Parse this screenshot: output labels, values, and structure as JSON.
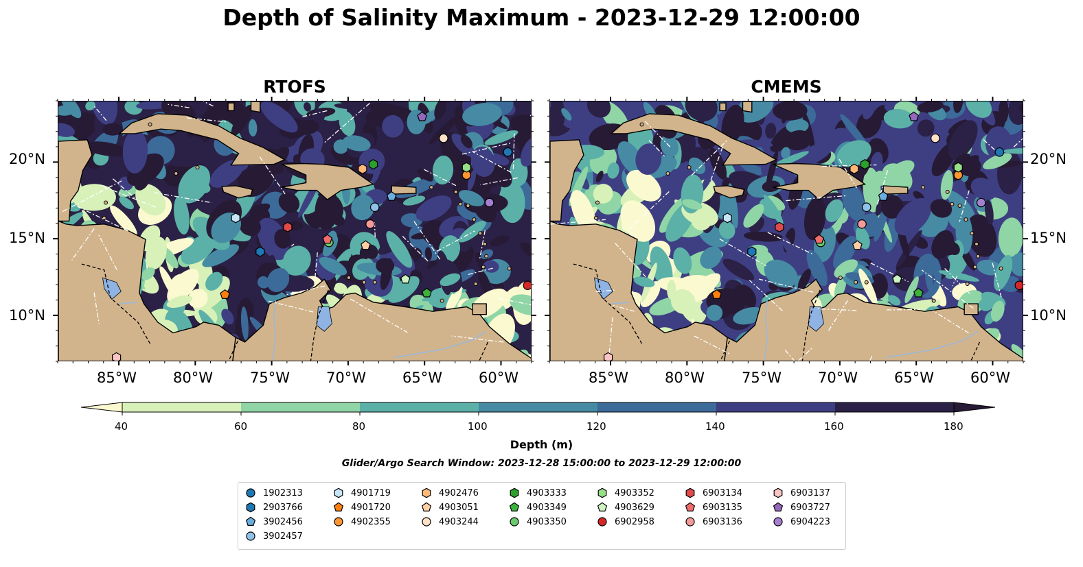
{
  "title": "Depth of Salinity Maximum - 2023-12-29 12:00:00",
  "panels": [
    {
      "id": "rtofs",
      "title": "RTOFS"
    },
    {
      "id": "cmems",
      "title": "CMEMS"
    }
  ],
  "axes": {
    "lon_ticks": [
      "85°W",
      "80°W",
      "75°W",
      "70°W",
      "65°W",
      "60°W"
    ],
    "lat_ticks": [
      "20°N",
      "15°N",
      "10°N"
    ]
  },
  "colorbar": {
    "label": "Depth (m)",
    "ticks": [
      "40",
      "60",
      "80",
      "100",
      "120",
      "140",
      "160",
      "180"
    ],
    "colors": [
      "#d7f1b8",
      "#8fd5a6",
      "#5bb0a7",
      "#468ba3",
      "#3c6a99",
      "#3e3f82",
      "#2b2045"
    ],
    "under_color": "#fbf9cf",
    "over_color": "#271a35",
    "extend": "both"
  },
  "search_window": "Glider/Argo Search Window: 2023-12-28 15:00:00 to 2023-12-29 12:00:00",
  "colors": {
    "land": "#d2b48c",
    "lake": "#8fb3e2",
    "river": "#9bb8d8"
  },
  "legend": [
    {
      "id": "1902313",
      "shape": "circle",
      "color": "#1f77b4"
    },
    {
      "id": "2903766",
      "shape": "hexagon",
      "color": "#1f77b4"
    },
    {
      "id": "3902456",
      "shape": "pentagon",
      "color": "#6aaee0"
    },
    {
      "id": "3902457",
      "shape": "circle",
      "color": "#8fc2ea"
    },
    {
      "id": "4901719",
      "shape": "hexagon",
      "color": "#c6e6f7"
    },
    {
      "id": "4901720",
      "shape": "pentagon",
      "color": "#ff7f0e"
    },
    {
      "id": "4902355",
      "shape": "circle",
      "color": "#ff9533"
    },
    {
      "id": "4902476",
      "shape": "hexagon",
      "color": "#ffb877"
    },
    {
      "id": "4903051",
      "shape": "pentagon",
      "color": "#ffcfa3"
    },
    {
      "id": "4903244",
      "shape": "circle",
      "color": "#ffe2c6"
    },
    {
      "id": "4903333",
      "shape": "hexagon",
      "color": "#2ca02c"
    },
    {
      "id": "4903349",
      "shape": "pentagon",
      "color": "#3cb23c"
    },
    {
      "id": "4903350",
      "shape": "circle",
      "color": "#6cca6c"
    },
    {
      "id": "4903352",
      "shape": "hexagon",
      "color": "#98df8a"
    },
    {
      "id": "4903629",
      "shape": "pentagon",
      "color": "#cdf2c3"
    },
    {
      "id": "6902958",
      "shape": "circle",
      "color": "#d62728"
    },
    {
      "id": "6903134",
      "shape": "hexagon",
      "color": "#e04a4b"
    },
    {
      "id": "6903135",
      "shape": "pentagon",
      "color": "#ef6d6d"
    },
    {
      "id": "6903136",
      "shape": "circle",
      "color": "#f59a9a"
    },
    {
      "id": "6903137",
      "shape": "hexagon",
      "color": "#fcc5c5"
    },
    {
      "id": "6903727",
      "shape": "pentagon",
      "color": "#9467bd"
    },
    {
      "id": "6904223",
      "shape": "circle",
      "color": "#a680d0"
    }
  ],
  "floats": {
    "1902313": [
      [
        -59.6,
        20.7
      ]
    ],
    "2903766": [
      [
        -75.8,
        14.2
      ]
    ],
    "3902456": [
      [
        -67.2,
        17.8
      ]
    ],
    "3902457": [
      [
        -68.3,
        17.1
      ]
    ],
    "4901719": [
      [
        -77.4,
        16.4
      ]
    ],
    "4901720": [
      [
        -78.1,
        11.4
      ]
    ],
    "4902355": [
      [
        -62.3,
        19.2
      ]
    ],
    "4902476": [
      [
        -69.1,
        19.6
      ]
    ],
    "4903051": [
      [
        -68.9,
        14.6
      ]
    ],
    "4903244": [
      [
        -63.8,
        21.6
      ]
    ],
    "4903333": [
      [
        -68.4,
        19.9
      ]
    ],
    "4903349": [
      [
        -64.9,
        11.5
      ]
    ],
    "4903350": [
      [
        -71.3,
        14.8
      ]
    ],
    "4903352": [
      [
        -62.3,
        19.7
      ]
    ],
    "4903629": [
      [
        -66.3,
        12.4
      ]
    ],
    "6902958": [
      [
        -58.3,
        12.0
      ]
    ],
    "6903134": [
      [
        -74.0,
        15.8
      ]
    ],
    "6903135": [
      [
        -71.4,
        15.0
      ]
    ],
    "6903136": [
      [
        -68.6,
        16.0
      ]
    ],
    "6903137": [
      [
        -85.2,
        7.3
      ]
    ],
    "6903727": [
      [
        -65.2,
        23.0
      ]
    ],
    "6904223": [
      [
        -60.8,
        17.4
      ]
    ]
  }
}
